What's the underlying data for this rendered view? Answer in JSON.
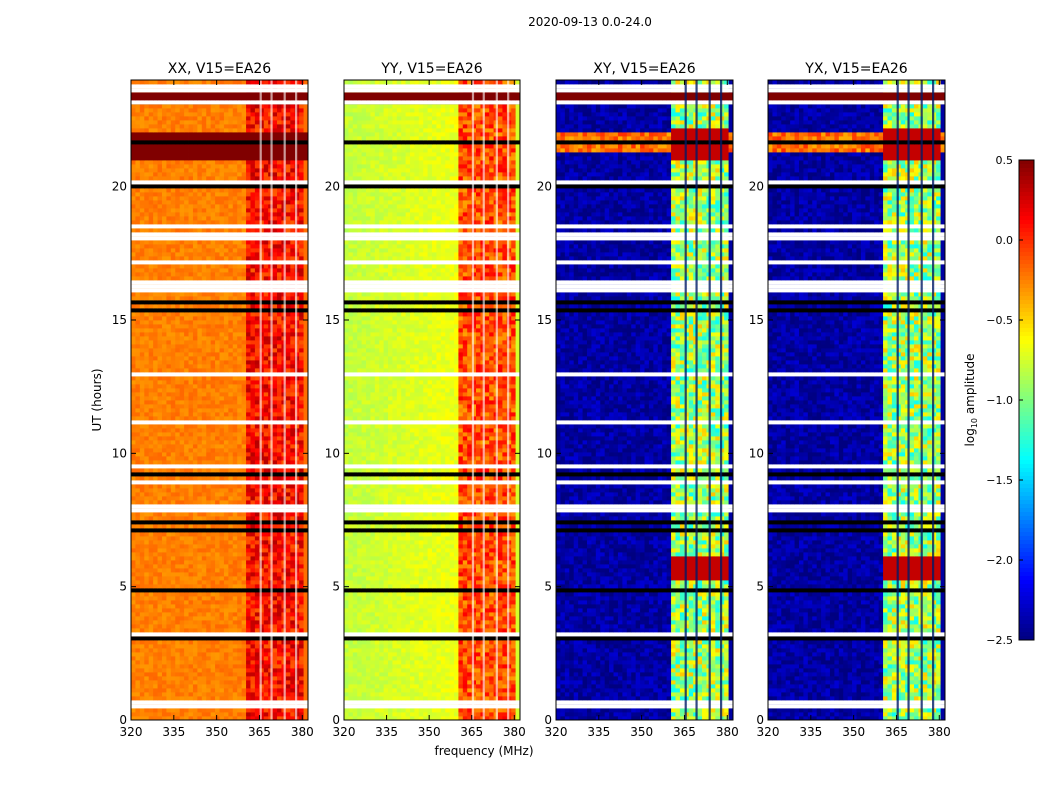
{
  "figure": {
    "suptitle": "2020-09-13 0.0-24.0",
    "xlabel": "frequency (MHz)",
    "ylabel": "UT (hours)"
  },
  "colorbar": {
    "label_main": "log",
    "label_sub": "10",
    "label_rest": " amplitude",
    "ticks": [
      "0.5",
      "0.0",
      "−0.5",
      "−1.0",
      "−1.5",
      "−2.0",
      "−2.5"
    ],
    "tick_values": [
      0.5,
      0.0,
      -0.5,
      -1.0,
      -1.5,
      -2.0,
      -2.5
    ],
    "range": [
      -2.5,
      0.5
    ],
    "colormap": "jet"
  },
  "chart_data": [
    {
      "type": "heatmap",
      "title": "XX, V15=EA26",
      "xlabel": "frequency (MHz)",
      "ylabel": "UT (hours)",
      "xlim": [
        320,
        382
      ],
      "ylim": [
        0,
        24
      ],
      "xticks": [
        "320",
        "335",
        "350",
        "365",
        "380"
      ],
      "xtick_values": [
        320,
        335,
        350,
        365,
        380
      ],
      "yticks": [
        "0",
        "5",
        "10",
        "15",
        "20"
      ],
      "ytick_values": [
        0,
        5,
        10,
        15,
        20
      ],
      "approx_log10_amplitude": {
        "below_360MHz": -0.25,
        "above_360MHz": 0.1,
        "ut_21_to_22": 0.5
      }
    },
    {
      "type": "heatmap",
      "title": "YY, V15=EA26",
      "xlim": [
        320,
        382
      ],
      "ylim": [
        0,
        24
      ],
      "xticks": [
        "320",
        "335",
        "350",
        "365",
        "380"
      ],
      "xtick_values": [
        320,
        335,
        350,
        365,
        380
      ],
      "yticks": [
        "0",
        "5",
        "10",
        "15",
        "20"
      ],
      "ytick_values": [
        0,
        5,
        10,
        15,
        20
      ],
      "approx_log10_amplitude": {
        "below_360MHz": -0.8,
        "above_360MHz": -0.1
      }
    },
    {
      "type": "heatmap",
      "title": "XY, V15=EA26",
      "xlim": [
        320,
        382
      ],
      "ylim": [
        0,
        24
      ],
      "xticks": [
        "320",
        "335",
        "350",
        "365",
        "380"
      ],
      "xtick_values": [
        320,
        335,
        350,
        365,
        380
      ],
      "yticks": [
        "0",
        "5",
        "10",
        "15",
        "20"
      ],
      "ytick_values": [
        0,
        5,
        10,
        15,
        20
      ],
      "approx_log10_amplitude": {
        "below_360MHz": -2.4,
        "above_360MHz": -0.9
      }
    },
    {
      "type": "heatmap",
      "title": "YX, V15=EA26",
      "xlim": [
        320,
        382
      ],
      "ylim": [
        0,
        24
      ],
      "xticks": [
        "320",
        "335",
        "350",
        "365",
        "380"
      ],
      "xtick_values": [
        320,
        335,
        350,
        365,
        380
      ],
      "yticks": [
        "0",
        "5",
        "10",
        "15",
        "20"
      ],
      "ytick_values": [
        0,
        5,
        10,
        15,
        20
      ],
      "approx_log10_amplitude": {
        "below_360MHz": -2.4,
        "above_360MHz": -0.9
      }
    }
  ]
}
